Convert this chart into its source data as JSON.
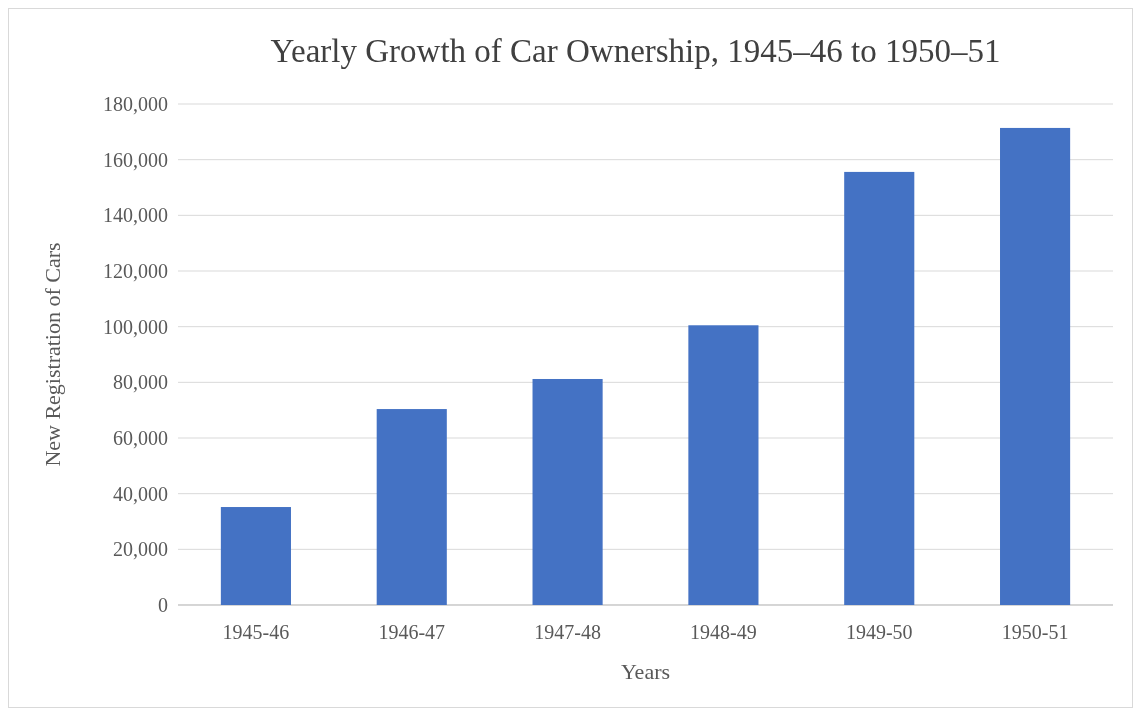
{
  "chart_data": {
    "type": "bar",
    "title": "Yearly Growth of Car Ownership, 1945–46 to 1950–51",
    "xlabel": "Years",
    "ylabel": "New Registration of Cars",
    "categories": [
      "1945-46",
      "1946-47",
      "1947-48",
      "1948-49",
      "1949-50",
      "1950-51"
    ],
    "values": [
      35200,
      70400,
      81200,
      100500,
      155600,
      171400
    ],
    "color": "#4472c4",
    "ylim": [
      0,
      180000
    ],
    "yticks": [
      {
        "value": 0,
        "label": "0"
      },
      {
        "value": 20000,
        "label": "20,000"
      },
      {
        "value": 40000,
        "label": "40,000"
      },
      {
        "value": 60000,
        "label": "60,000"
      },
      {
        "value": 80000,
        "label": "80,000"
      },
      {
        "value": 100000,
        "label": "100,000"
      },
      {
        "value": 120000,
        "label": "120,000"
      },
      {
        "value": 140000,
        "label": "140,000"
      },
      {
        "value": 160000,
        "label": "160,000"
      },
      {
        "value": 180000,
        "label": "180,000"
      }
    ],
    "grid": "y"
  }
}
